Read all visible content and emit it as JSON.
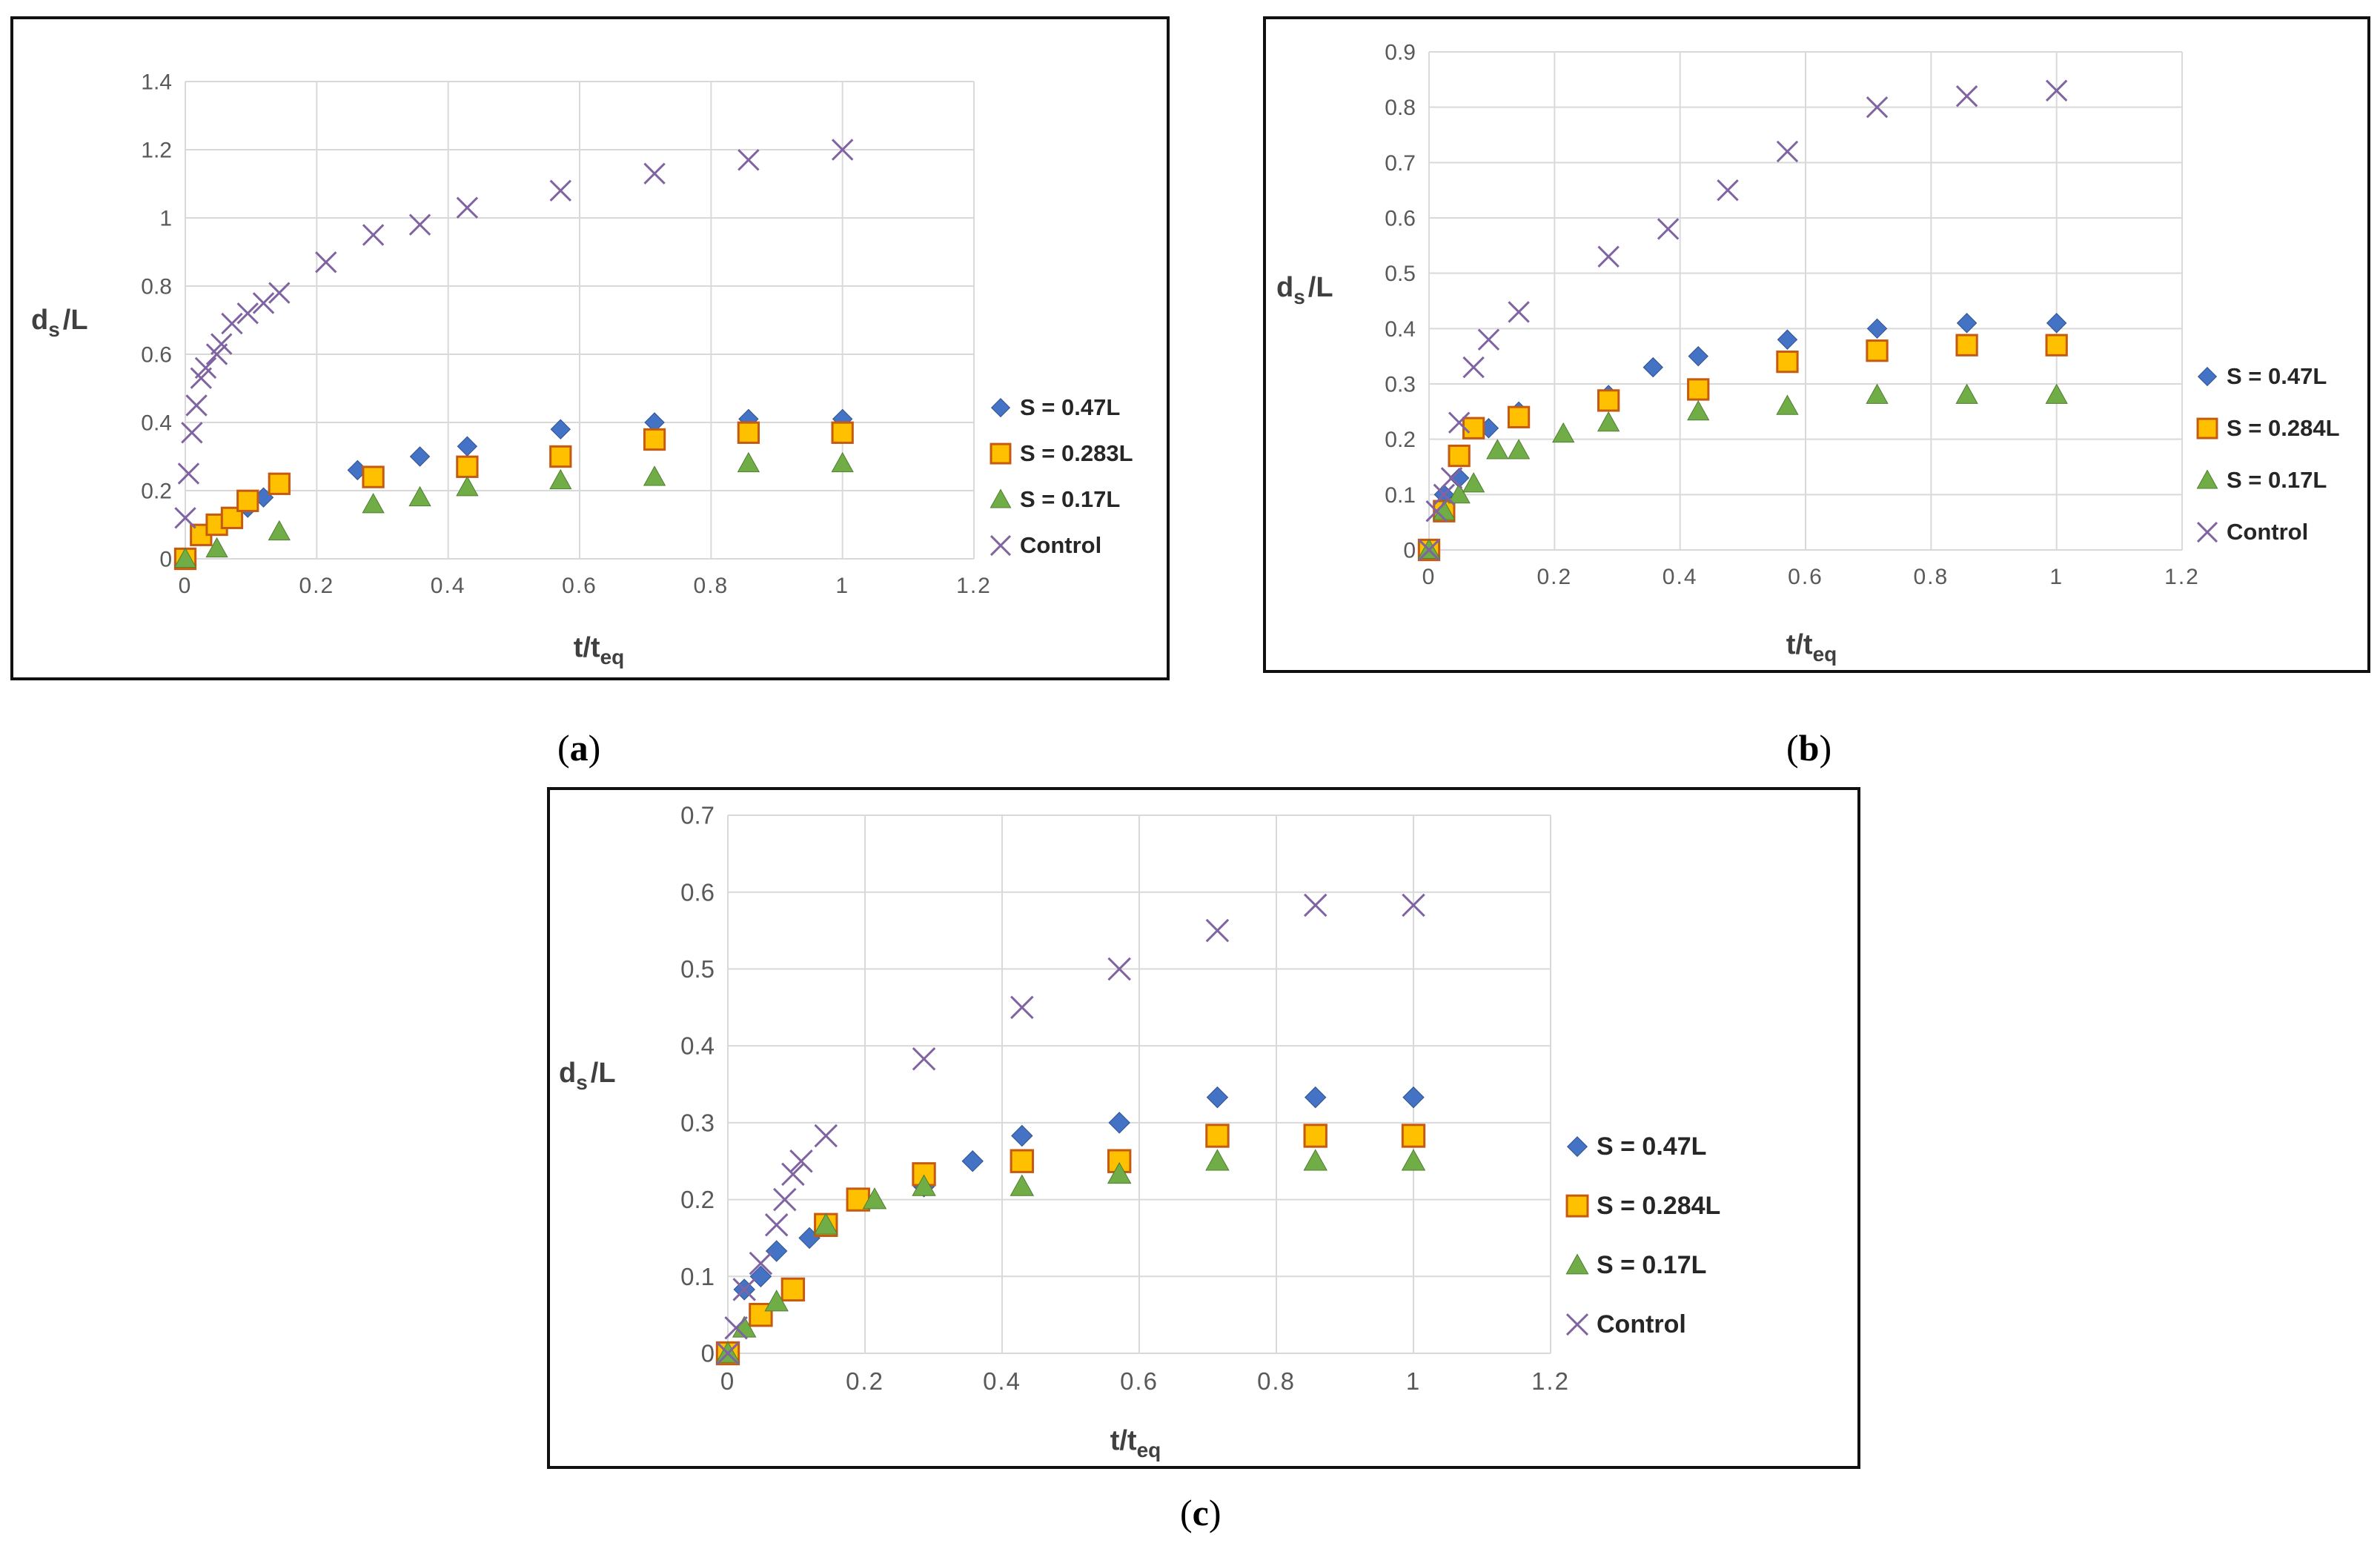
{
  "chart_data": [
    {
      "type": "scatter",
      "panel": "a",
      "xlabel_base": "t/t",
      "xlabel_sub": "eq",
      "ylabel_base": "d",
      "ylabel_sub": "s",
      "ylabel_tail": "/L",
      "xlim": [
        0,
        1.2
      ],
      "ylim": [
        0,
        1.4
      ],
      "xticks": [
        0,
        0.2,
        0.4,
        0.6,
        0.8,
        1,
        1.2
      ],
      "xtick_labels": [
        "0",
        "0.2",
        "0.4",
        "0.6",
        "0.8",
        "1",
        "1.2"
      ],
      "yticks": [
        0,
        0.2,
        0.4,
        0.6,
        0.8,
        1,
        1.2,
        1.4
      ],
      "ytick_labels": [
        "0",
        "0.2",
        "0.4",
        "0.6",
        "0.8",
        "1",
        "1.2",
        "1.4"
      ],
      "legend_position": "right",
      "series": [
        {
          "name": "S = 0.47L",
          "marker": "diamond",
          "color": "#4472c4",
          "x": [
            0,
            0.024,
            0.048,
            0.071,
            0.095,
            0.119,
            0.143,
            0.262,
            0.286,
            0.357,
            0.429,
            0.571,
            0.714,
            0.857,
            1.0
          ],
          "y": [
            0,
            0.07,
            0.1,
            0.12,
            0.15,
            0.18,
            0.22,
            0.26,
            0.24,
            0.3,
            0.33,
            0.38,
            0.4,
            0.41,
            0.41
          ]
        },
        {
          "name": "S = 0.283L",
          "marker": "square",
          "color": "#ffc000",
          "x": [
            0,
            0.024,
            0.048,
            0.071,
            0.095,
            0.143,
            0.286,
            0.429,
            0.571,
            0.714,
            0.857,
            1.0
          ],
          "y": [
            0,
            0.07,
            0.1,
            0.12,
            0.17,
            0.22,
            0.24,
            0.27,
            0.3,
            0.35,
            0.37,
            0.37
          ]
        },
        {
          "name": "S = 0.17L",
          "marker": "triangle",
          "color": "#70ad47",
          "x": [
            0,
            0.048,
            0.143,
            0.286,
            0.357,
            0.429,
            0.571,
            0.714,
            0.857,
            1.0
          ],
          "y": [
            0,
            0.03,
            0.08,
            0.16,
            0.18,
            0.21,
            0.23,
            0.24,
            0.28,
            0.28
          ]
        },
        {
          "name": "Control",
          "marker": "x",
          "color": "#8064a2",
          "x": [
            0,
            0.005,
            0.01,
            0.017,
            0.024,
            0.031,
            0.048,
            0.055,
            0.071,
            0.095,
            0.119,
            0.143,
            0.214,
            0.286,
            0.357,
            0.429,
            0.571,
            0.714,
            0.857,
            1.0
          ],
          "y": [
            0.12,
            0.25,
            0.37,
            0.45,
            0.53,
            0.56,
            0.6,
            0.63,
            0.69,
            0.72,
            0.75,
            0.78,
            0.87,
            0.95,
            0.98,
            1.03,
            1.08,
            1.13,
            1.17,
            1.2
          ]
        }
      ]
    },
    {
      "type": "scatter",
      "panel": "b",
      "xlabel_base": "t/t",
      "xlabel_sub": "eq",
      "ylabel_base": "d",
      "ylabel_sub": "s",
      "ylabel_tail": "/L",
      "xlim": [
        0,
        1.2
      ],
      "ylim": [
        0,
        0.9
      ],
      "xticks": [
        0,
        0.2,
        0.4,
        0.6,
        0.8,
        1,
        1.2
      ],
      "xtick_labels": [
        "0",
        "0.2",
        "0.4",
        "0.6",
        "0.8",
        "1",
        "1.2"
      ],
      "yticks": [
        0,
        0.1,
        0.2,
        0.3,
        0.4,
        0.5,
        0.6,
        0.7,
        0.8,
        0.9
      ],
      "ytick_labels": [
        "0",
        "0.1",
        "0.2",
        "0.3",
        "0.4",
        "0.5",
        "0.6",
        "0.7",
        "0.8",
        "0.9"
      ],
      "legend_position": "right",
      "series": [
        {
          "name": "S = 0.47L",
          "marker": "diamond",
          "color": "#4472c4",
          "x": [
            0,
            0.024,
            0.048,
            0.071,
            0.095,
            0.143,
            0.286,
            0.357,
            0.429,
            0.571,
            0.714,
            0.857,
            1.0
          ],
          "y": [
            0,
            0.1,
            0.13,
            0.22,
            0.22,
            0.25,
            0.28,
            0.33,
            0.35,
            0.38,
            0.4,
            0.41,
            0.41
          ]
        },
        {
          "name": "S = 0.284L",
          "marker": "square",
          "color": "#ffc000",
          "x": [
            0,
            0.024,
            0.048,
            0.071,
            0.143,
            0.286,
            0.429,
            0.571,
            0.714,
            0.857,
            1.0
          ],
          "y": [
            0,
            0.07,
            0.17,
            0.22,
            0.24,
            0.27,
            0.29,
            0.34,
            0.36,
            0.37,
            0.37
          ]
        },
        {
          "name": "S = 0.17L",
          "marker": "triangle",
          "color": "#70ad47",
          "x": [
            0,
            0.024,
            0.048,
            0.071,
            0.109,
            0.143,
            0.214,
            0.286,
            0.429,
            0.571,
            0.714,
            0.857,
            1.0
          ],
          "y": [
            0,
            0.07,
            0.1,
            0.12,
            0.18,
            0.18,
            0.21,
            0.23,
            0.25,
            0.26,
            0.28,
            0.28,
            0.28
          ]
        },
        {
          "name": "Control",
          "marker": "x",
          "color": "#8064a2",
          "x": [
            0,
            0.012,
            0.024,
            0.036,
            0.048,
            0.071,
            0.095,
            0.143,
            0.286,
            0.381,
            0.476,
            0.571,
            0.714,
            0.857,
            1.0
          ],
          "y": [
            0,
            0.07,
            0.1,
            0.13,
            0.23,
            0.33,
            0.38,
            0.43,
            0.53,
            0.58,
            0.65,
            0.72,
            0.8,
            0.82,
            0.83
          ]
        }
      ]
    },
    {
      "type": "scatter",
      "panel": "c",
      "xlabel_base": "t/t",
      "xlabel_sub": "eq",
      "ylabel_base": "d",
      "ylabel_sub": "s",
      "ylabel_tail": "/L",
      "xlim": [
        0,
        1.2
      ],
      "ylim": [
        0,
        0.7
      ],
      "xticks": [
        0,
        0.2,
        0.4,
        0.6,
        0.8,
        1,
        1.2
      ],
      "xtick_labels": [
        "0",
        "0.2",
        "0.4",
        "0.6",
        "0.8",
        "1",
        "1.2"
      ],
      "yticks": [
        0,
        0.1,
        0.2,
        0.3,
        0.4,
        0.5,
        0.6,
        0.7
      ],
      "ytick_labels": [
        "0",
        "0.1",
        "0.2",
        "0.3",
        "0.4",
        "0.5",
        "0.6",
        "0.7"
      ],
      "legend_position": "right",
      "series": [
        {
          "name": "S = 0.47L",
          "marker": "diamond",
          "color": "#4472c4",
          "x": [
            0,
            0.024,
            0.048,
            0.071,
            0.119,
            0.143,
            0.286,
            0.357,
            0.429,
            0.571,
            0.714,
            0.857,
            1.0
          ],
          "y": [
            0,
            0.083,
            0.1,
            0.133,
            0.15,
            0.167,
            0.217,
            0.25,
            0.283,
            0.3,
            0.333,
            0.333,
            0.333
          ]
        },
        {
          "name": "S = 0.284L",
          "marker": "square",
          "color": "#ffc000",
          "x": [
            0,
            0.048,
            0.095,
            0.143,
            0.19,
            0.286,
            0.429,
            0.571,
            0.714,
            0.857,
            1.0
          ],
          "y": [
            0,
            0.05,
            0.083,
            0.167,
            0.2,
            0.233,
            0.25,
            0.25,
            0.283,
            0.283,
            0.283
          ]
        },
        {
          "name": "S = 0.17L",
          "marker": "triangle",
          "color": "#70ad47",
          "x": [
            0,
            0.024,
            0.071,
            0.143,
            0.214,
            0.286,
            0.429,
            0.571,
            0.714,
            0.857,
            1.0
          ],
          "y": [
            0,
            0.033,
            0.067,
            0.167,
            0.2,
            0.217,
            0.217,
            0.233,
            0.25,
            0.25,
            0.25
          ]
        },
        {
          "name": "Control",
          "marker": "x",
          "color": "#8064a2",
          "x": [
            0,
            0.012,
            0.024,
            0.048,
            0.071,
            0.083,
            0.095,
            0.107,
            0.143,
            0.286,
            0.429,
            0.571,
            0.714,
            0.857,
            1.0
          ],
          "y": [
            0,
            0.033,
            0.083,
            0.117,
            0.167,
            0.2,
            0.233,
            0.25,
            0.283,
            0.383,
            0.45,
            0.5,
            0.55,
            0.583,
            0.583
          ]
        }
      ]
    }
  ],
  "captions": {
    "a": {
      "open": "(",
      "letter": "a",
      "close": ")"
    },
    "b": {
      "open": "(",
      "letter": "b",
      "close": ")"
    },
    "c": {
      "open": "(",
      "letter": "c",
      "close": ")"
    }
  }
}
